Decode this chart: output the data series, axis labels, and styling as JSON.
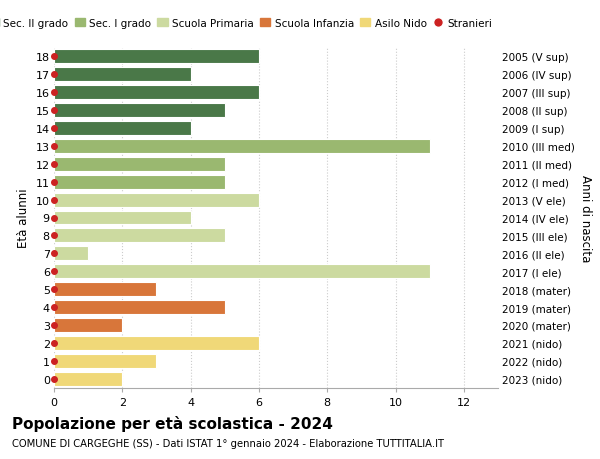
{
  "ages": [
    0,
    1,
    2,
    3,
    4,
    5,
    6,
    7,
    8,
    9,
    10,
    11,
    12,
    13,
    14,
    15,
    16,
    17,
    18
  ],
  "right_labels": [
    "2023 (nido)",
    "2022 (nido)",
    "2021 (nido)",
    "2020 (mater)",
    "2019 (mater)",
    "2018 (mater)",
    "2017 (I ele)",
    "2016 (II ele)",
    "2015 (III ele)",
    "2014 (IV ele)",
    "2013 (V ele)",
    "2012 (I med)",
    "2011 (II med)",
    "2010 (III med)",
    "2009 (I sup)",
    "2008 (II sup)",
    "2007 (III sup)",
    "2006 (IV sup)",
    "2005 (V sup)"
  ],
  "bar_values": [
    2,
    3,
    6,
    2,
    5,
    3,
    11,
    1,
    5,
    4,
    6,
    5,
    5,
    11,
    4,
    5,
    6,
    4,
    6
  ],
  "bar_colors": [
    "#f0d878",
    "#f0d878",
    "#f0d878",
    "#d8763a",
    "#d8763a",
    "#d8763a",
    "#ccdaa0",
    "#ccdaa0",
    "#ccdaa0",
    "#ccdaa0",
    "#ccdaa0",
    "#9ab870",
    "#9ab870",
    "#9ab870",
    "#4a7848",
    "#4a7848",
    "#4a7848",
    "#4a7848",
    "#4a7848"
  ],
  "bar_alpha_overlay": [
    "#e8d090",
    "#e8d090",
    "#e8d090",
    "#c86828",
    "#c86828",
    "#c86828",
    "#b8cc88",
    "#b8cc88",
    "#b8cc88",
    "#b8cc88",
    "#b8cc88",
    "#80a058",
    "#80a058",
    "#80a058",
    "#3a6838",
    "#3a6838",
    "#3a6838",
    "#3a6838",
    "#3a6838"
  ],
  "stranieri_dots": [
    0,
    1,
    2,
    3,
    4,
    5,
    6,
    7,
    8,
    9,
    10,
    11,
    12,
    13,
    14,
    15,
    16,
    17,
    18
  ],
  "legend_labels": [
    "Sec. II grado",
    "Sec. I grado",
    "Scuola Primaria",
    "Scuola Infanzia",
    "Asilo Nido",
    "Stranieri"
  ],
  "legend_colors": [
    "#4a7848",
    "#9ab870",
    "#ccdaa0",
    "#d8763a",
    "#f0d878",
    "#cc2222"
  ],
  "ylabel": "Età alunni",
  "right_ylabel": "Anni di nascita",
  "title": "Popolazione per età scolastica - 2024",
  "subtitle": "COMUNE DI CARGEGHE (SS) - Dati ISTAT 1° gennaio 2024 - Elaborazione TUTTITALIA.IT",
  "xlim": [
    0,
    13
  ],
  "ylim": [
    -0.5,
    18.5
  ],
  "grid_color": "#cccccc",
  "background_color": "#ffffff",
  "dot_color": "#cc2222",
  "bar_height": 0.78
}
